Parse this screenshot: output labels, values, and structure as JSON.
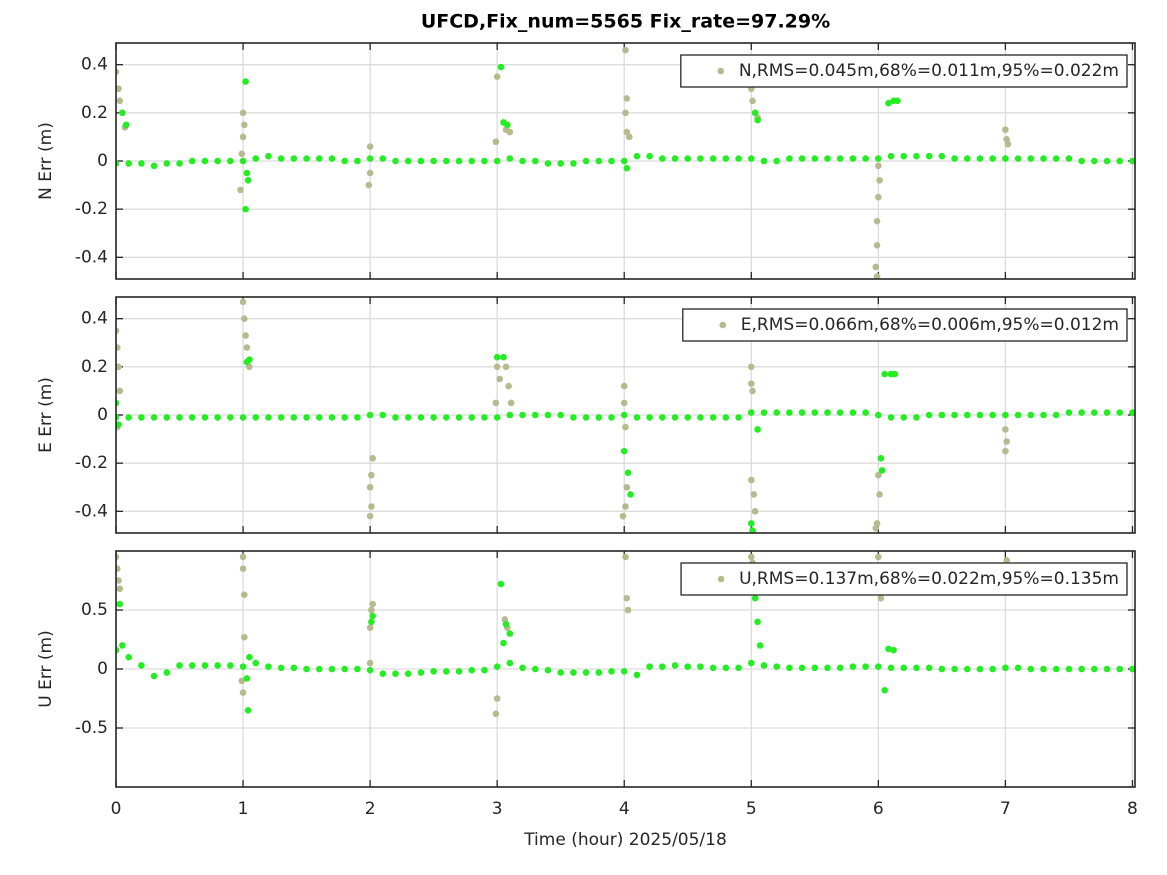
{
  "chart_data": [
    {
      "type": "scatter",
      "title": "UFCD,Fix_num=5565 Fix_rate=97.29%",
      "y_label": "N Err (m)",
      "xlim": [
        0,
        8.02
      ],
      "xticks": [
        0,
        1,
        2,
        3,
        4,
        5,
        6,
        7,
        8
      ],
      "ylim": [
        -0.49,
        0.49
      ],
      "yticks": [
        -0.4,
        -0.2,
        0,
        0.2,
        0.4
      ],
      "grid": true,
      "legend": "upper right",
      "series": [
        {
          "name": "N,RMS=0.045m,68%=0.011m,95%=0.022m",
          "color": "#b8b98f",
          "x": [
            0,
            0.02,
            0.03,
            0.05,
            0.07,
            1,
            1,
            0.99,
            0.98,
            1.01,
            2,
            2,
            1.99,
            3,
            2.99,
            3.07,
            3.1,
            4.01,
            4.02,
            4.01,
            4.02,
            4.04,
            5,
            5.01,
            5.03,
            5.05,
            6,
            6.01,
            6,
            5.99,
            5.99,
            5.98,
            5.99,
            7,
            7.01,
            7.02
          ],
          "values": [
            0.37,
            0.3,
            0.25,
            0.2,
            0.14,
            0.2,
            0.1,
            0.03,
            -0.12,
            0.15,
            0.06,
            -0.05,
            -0.1,
            0.35,
            0.08,
            0.13,
            0.12,
            0.46,
            0.26,
            0.2,
            0.12,
            0.1,
            0.3,
            0.25,
            0.2,
            0.18,
            -0.02,
            -0.08,
            -0.15,
            -0.25,
            -0.35,
            -0.44,
            -0.48,
            0.13,
            0.09,
            0.07
          ]
        },
        {
          "color": "#22ee22",
          "x": [
            0,
            0.1,
            0.2,
            0.3,
            0.4,
            0.5,
            0.6,
            0.7,
            0.8,
            0.9,
            1,
            1.1,
            1.2,
            1.3,
            1.4,
            1.5,
            1.6,
            1.7,
            1.8,
            1.9,
            2,
            2.1,
            2.2,
            2.3,
            2.4,
            2.5,
            2.6,
            2.7,
            2.8,
            2.9,
            3,
            3.1,
            3.2,
            3.3,
            3.4,
            3.5,
            3.6,
            3.7,
            3.8,
            3.9,
            4,
            4.1,
            4.2,
            4.3,
            4.4,
            4.5,
            4.6,
            4.7,
            4.8,
            4.9,
            5,
            5.1,
            5.2,
            5.3,
            5.4,
            5.5,
            5.6,
            5.7,
            5.8,
            5.9,
            6,
            6.1,
            6.2,
            6.3,
            6.4,
            6.5,
            6.6,
            6.7,
            6.8,
            6.9,
            7,
            7.1,
            7.2,
            7.3,
            7.4,
            7.5,
            7.6,
            7.7,
            7.8,
            7.9,
            8,
            0.05,
            0.08,
            1.02,
            1.03,
            1.04,
            1.02,
            3.03,
            3.05,
            3.08,
            4.02,
            5.03,
            5.05,
            6.08,
            6.12,
            6.15
          ],
          "values": [
            -0.01,
            -0.01,
            -0.01,
            -0.02,
            -0.01,
            -0.01,
            0,
            0,
            0,
            0,
            0,
            0.01,
            0.02,
            0.01,
            0.01,
            0.01,
            0.01,
            0.01,
            0,
            0,
            0.01,
            0.01,
            0,
            0,
            0,
            0,
            0,
            0,
            0,
            0,
            0,
            0.01,
            0,
            0,
            -0.01,
            -0.01,
            -0.01,
            0,
            0,
            0,
            0,
            0.02,
            0.02,
            0.01,
            0.01,
            0.01,
            0.01,
            0.01,
            0.01,
            0.01,
            0.01,
            0,
            0,
            0.01,
            0.01,
            0.01,
            0.01,
            0.01,
            0.01,
            0.01,
            0.01,
            0.02,
            0.02,
            0.02,
            0.02,
            0.02,
            0.01,
            0.01,
            0.01,
            0.01,
            0.01,
            0.01,
            0.01,
            0.01,
            0.01,
            0.01,
            0,
            0,
            0,
            0,
            0,
            0.2,
            0.15,
            0.33,
            -0.05,
            -0.08,
            -0.2,
            0.39,
            0.16,
            0.15,
            -0.03,
            0.2,
            0.17,
            0.24,
            0.25,
            0.25
          ]
        }
      ]
    },
    {
      "type": "scatter",
      "y_label": "E Err (m)",
      "xlim": [
        0,
        8.02
      ],
      "xticks": [
        0,
        1,
        2,
        3,
        4,
        5,
        6,
        7,
        8
      ],
      "ylim": [
        -0.49,
        0.49
      ],
      "yticks": [
        -0.4,
        -0.2,
        0,
        0.2,
        0.4
      ],
      "grid": true,
      "legend": "upper right",
      "series": [
        {
          "name": "E,RMS=0.066m,68%=0.006m,95%=0.012m",
          "color": "#b8b98f",
          "x": [
            0,
            0.01,
            0.02,
            0.03,
            0.01,
            1,
            1.01,
            1.02,
            1.03,
            1.05,
            2.02,
            2.01,
            2,
            2.01,
            2,
            3,
            3.02,
            2.99,
            3.07,
            3.09,
            3.11,
            4,
            4,
            4.01,
            4.02,
            4.01,
            3.99,
            5,
            5,
            5.01,
            5,
            5.02,
            5.03,
            6,
            6.01,
            5.99,
            5.98,
            7,
            7.01,
            7
          ],
          "values": [
            0.35,
            0.28,
            0.2,
            0.1,
            -0.05,
            0.47,
            0.4,
            0.33,
            0.28,
            0.2,
            -0.18,
            -0.25,
            -0.3,
            -0.38,
            -0.42,
            0.2,
            0.15,
            0.05,
            0.2,
            0.12,
            0.05,
            0.12,
            0.05,
            -0.05,
            -0.3,
            -0.38,
            -0.42,
            0.2,
            0.13,
            0.1,
            -0.27,
            -0.33,
            -0.4,
            -0.25,
            -0.33,
            -0.45,
            -0.47,
            -0.06,
            -0.11,
            -0.15
          ]
        },
        {
          "color": "#22ee22",
          "x": [
            0,
            0.1,
            0.2,
            0.3,
            0.4,
            0.5,
            0.6,
            0.7,
            0.8,
            0.9,
            1,
            1.1,
            1.2,
            1.3,
            1.4,
            1.5,
            1.6,
            1.7,
            1.8,
            1.9,
            2,
            2.1,
            2.2,
            2.3,
            2.4,
            2.5,
            2.6,
            2.7,
            2.8,
            2.9,
            3,
            3.1,
            3.2,
            3.3,
            3.4,
            3.5,
            3.6,
            3.7,
            3.8,
            3.9,
            4,
            4.1,
            4.2,
            4.3,
            4.4,
            4.5,
            4.6,
            4.7,
            4.8,
            4.9,
            5,
            5.1,
            5.2,
            5.3,
            5.4,
            5.5,
            5.6,
            5.7,
            5.8,
            5.9,
            6,
            6.1,
            6.2,
            6.3,
            6.4,
            6.5,
            6.6,
            6.7,
            6.8,
            6.9,
            7,
            7.1,
            7.2,
            7.3,
            7.4,
            7.5,
            7.6,
            7.7,
            7.8,
            7.9,
            8,
            0,
            0.02,
            1.05,
            1.03,
            3,
            3.05,
            4,
            4.03,
            4.05,
            5.05,
            5,
            5.01,
            6.05,
            6.1,
            6.13,
            6.02,
            6.03
          ],
          "values": [
            -0.01,
            -0.01,
            -0.01,
            -0.01,
            -0.01,
            -0.01,
            -0.01,
            -0.01,
            -0.01,
            -0.01,
            -0.01,
            -0.01,
            -0.01,
            -0.01,
            -0.01,
            -0.01,
            -0.01,
            -0.01,
            -0.01,
            -0.01,
            0,
            0,
            -0.01,
            -0.01,
            -0.01,
            -0.01,
            -0.01,
            -0.01,
            -0.01,
            -0.01,
            -0.01,
            0,
            0,
            0,
            0,
            0,
            -0.01,
            -0.01,
            -0.01,
            -0.01,
            0,
            -0.01,
            -0.01,
            -0.01,
            -0.01,
            -0.01,
            -0.01,
            -0.01,
            -0.01,
            -0.01,
            0.01,
            0.01,
            0.01,
            0.01,
            0.01,
            0.01,
            0.01,
            0.01,
            0.01,
            0.01,
            0,
            -0.01,
            -0.01,
            -0.01,
            0,
            0,
            0,
            0,
            0,
            0,
            0,
            0,
            0,
            0,
            0,
            0.01,
            0.01,
            0.01,
            0.01,
            0.01,
            0.01,
            0.05,
            -0.04,
            0.23,
            0.22,
            0.24,
            0.24,
            -0.15,
            -0.24,
            -0.33,
            -0.06,
            -0.45,
            -0.48,
            0.17,
            0.17,
            0.17,
            -0.18,
            -0.23
          ]
        }
      ]
    },
    {
      "type": "scatter",
      "y_label": "U Err (m)",
      "x_label": "Time (hour)  2025/05/18",
      "xlim": [
        0,
        8.02
      ],
      "xticks": [
        0,
        1,
        2,
        3,
        4,
        5,
        6,
        7,
        8
      ],
      "ylim": [
        -1,
        1
      ],
      "yticks": [
        -0.5,
        0,
        0.5
      ],
      "grid": true,
      "legend": "upper right",
      "series": [
        {
          "name": "U,RMS=0.137m,68%=0.022m,95%=0.135m",
          "color": "#b8b98f",
          "x": [
            0,
            0.01,
            0.02,
            0.03,
            1,
            1,
            1.01,
            1.01,
            0.99,
            1,
            2.02,
            2.01,
            2,
            2,
            2.99,
            3,
            3.06,
            3.08,
            4.01,
            4.02,
            4.03,
            5,
            5.01,
            6,
            6.01,
            6.02,
            7.01
          ],
          "values": [
            0.95,
            0.85,
            0.75,
            0.68,
            0.95,
            0.85,
            0.63,
            0.27,
            -0.1,
            -0.2,
            0.55,
            0.5,
            0.35,
            0.05,
            -0.38,
            -0.25,
            0.42,
            0.35,
            0.95,
            0.6,
            0.5,
            0.95,
            0.9,
            0.95,
            0.7,
            0.6,
            0.92
          ]
        },
        {
          "color": "#22ee22",
          "x": [
            0,
            0.1,
            0.2,
            0.3,
            0.4,
            0.5,
            0.6,
            0.7,
            0.8,
            0.9,
            1,
            1.1,
            1.2,
            1.3,
            1.4,
            1.5,
            1.6,
            1.7,
            1.8,
            1.9,
            2,
            2.1,
            2.2,
            2.3,
            2.4,
            2.5,
            2.6,
            2.7,
            2.8,
            2.9,
            3,
            3.1,
            3.2,
            3.3,
            3.4,
            3.5,
            3.6,
            3.7,
            3.8,
            3.9,
            4,
            4.1,
            4.2,
            4.3,
            4.4,
            4.5,
            4.6,
            4.7,
            4.8,
            4.9,
            5,
            5.1,
            5.2,
            5.3,
            5.4,
            5.5,
            5.6,
            5.7,
            5.8,
            5.9,
            6,
            6.1,
            6.2,
            6.3,
            6.4,
            6.5,
            6.6,
            6.7,
            6.8,
            6.9,
            7,
            7.1,
            7.2,
            7.3,
            7.4,
            7.5,
            7.6,
            7.7,
            7.8,
            7.9,
            8,
            0.03,
            0.05,
            1.05,
            1.03,
            1.04,
            2.02,
            2.01,
            3.03,
            3.05,
            3.07,
            3.1,
            5.03,
            5.05,
            5.07,
            6.08,
            6.12,
            6.05
          ],
          "values": [
            0.16,
            0.1,
            0.03,
            -0.06,
            -0.03,
            0.03,
            0.03,
            0.03,
            0.03,
            0.03,
            0.02,
            0.05,
            0.02,
            0.01,
            0.01,
            0,
            0,
            0,
            0,
            0,
            -0.01,
            -0.04,
            -0.04,
            -0.04,
            -0.03,
            -0.02,
            -0.02,
            -0.02,
            -0.01,
            -0.01,
            0.02,
            0.05,
            0.01,
            0,
            -0.01,
            -0.03,
            -0.03,
            -0.03,
            -0.03,
            -0.02,
            -0.02,
            -0.05,
            0.02,
            0.02,
            0.03,
            0.02,
            0.02,
            0.01,
            0.01,
            0.01,
            0.05,
            0.03,
            0.02,
            0.01,
            0.01,
            0.01,
            0.01,
            0.01,
            0.02,
            0.02,
            0.02,
            0.01,
            0.01,
            0.01,
            0.01,
            0,
            0,
            0,
            0,
            0,
            0.01,
            0.01,
            0,
            0,
            0,
            0,
            0,
            0,
            0,
            0,
            0,
            0.55,
            0.2,
            0.1,
            -0.08,
            -0.35,
            0.45,
            0.4,
            0.72,
            0.22,
            0.38,
            0.3,
            0.6,
            0.4,
            0.2,
            0.17,
            0.16,
            -0.18
          ]
        }
      ]
    }
  ]
}
